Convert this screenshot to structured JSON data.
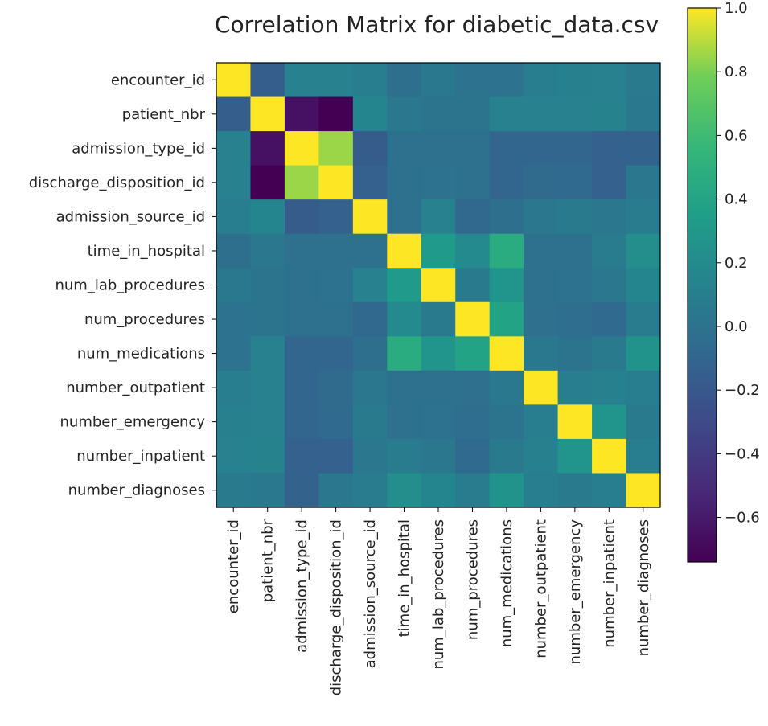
{
  "chart_data": {
    "type": "heatmap",
    "title": "Correlation Matrix for diabetic_data.csv",
    "xlabel": "",
    "ylabel": "",
    "labels": [
      "encounter_id",
      "patient_nbr",
      "admission_type_id",
      "discharge_disposition_id",
      "admission_source_id",
      "time_in_hospital",
      "num_lab_procedures",
      "num_procedures",
      "num_medications",
      "number_outpatient",
      "number_emergency",
      "number_inpatient",
      "number_diagnoses"
    ],
    "matrix": [
      [
        1.0,
        -0.16,
        0.12,
        0.12,
        0.1,
        -0.03,
        0.05,
        0.0,
        0.0,
        0.1,
        0.11,
        0.12,
        0.06
      ],
      [
        -0.16,
        1.0,
        -0.65,
        -0.74,
        0.15,
        0.04,
        0.01,
        0.01,
        0.12,
        0.12,
        0.12,
        0.14,
        0.05
      ],
      [
        0.12,
        -0.65,
        1.0,
        0.85,
        -0.17,
        -0.01,
        -0.01,
        -0.01,
        -0.1,
        -0.1,
        -0.1,
        -0.14,
        -0.12
      ],
      [
        0.12,
        -0.74,
        0.85,
        1.0,
        -0.14,
        -0.01,
        0.0,
        -0.01,
        -0.1,
        -0.06,
        -0.07,
        -0.14,
        0.04
      ],
      [
        0.1,
        0.15,
        -0.17,
        -0.14,
        1.0,
        -0.01,
        0.12,
        -0.09,
        -0.03,
        0.04,
        0.06,
        0.04,
        0.07
      ],
      [
        -0.03,
        0.04,
        -0.01,
        -0.01,
        -0.01,
        1.0,
        0.32,
        0.19,
        0.47,
        -0.01,
        -0.01,
        0.07,
        0.22
      ],
      [
        0.05,
        0.01,
        -0.01,
        0.0,
        0.12,
        0.32,
        1.0,
        0.06,
        0.27,
        -0.01,
        0.0,
        0.04,
        0.15
      ],
      [
        0.0,
        0.01,
        -0.01,
        -0.01,
        -0.09,
        0.19,
        0.06,
        1.0,
        0.39,
        -0.02,
        -0.04,
        -0.07,
        0.07
      ],
      [
        0.0,
        0.12,
        -0.1,
        -0.1,
        -0.03,
        0.47,
        0.27,
        0.39,
        1.0,
        0.05,
        0.01,
        0.06,
        0.26
      ],
      [
        0.1,
        0.12,
        -0.1,
        -0.06,
        0.04,
        -0.01,
        -0.01,
        -0.02,
        0.05,
        1.0,
        0.09,
        0.11,
        0.09
      ],
      [
        0.11,
        0.12,
        -0.1,
        -0.07,
        0.06,
        -0.01,
        0.0,
        -0.04,
        0.01,
        0.09,
        1.0,
        0.27,
        0.06
      ],
      [
        0.12,
        0.14,
        -0.14,
        -0.14,
        0.04,
        0.07,
        0.04,
        -0.07,
        0.06,
        0.11,
        0.27,
        1.0,
        0.1
      ],
      [
        0.06,
        0.05,
        -0.12,
        0.04,
        0.07,
        0.22,
        0.15,
        0.07,
        0.26,
        0.09,
        0.06,
        0.1,
        1.0
      ]
    ],
    "vmin": -0.74,
    "vmax": 1.0,
    "colormap": "viridis",
    "colorbar_ticks": [
      {
        "value": 1.0,
        "label": "1.0"
      },
      {
        "value": 0.8,
        "label": "0.8"
      },
      {
        "value": 0.6,
        "label": "0.6"
      },
      {
        "value": 0.4,
        "label": "0.4"
      },
      {
        "value": 0.2,
        "label": "0.2"
      },
      {
        "value": 0.0,
        "label": "0.0"
      },
      {
        "value": -0.2,
        "label": "−0.2"
      },
      {
        "value": -0.4,
        "label": "−0.4"
      },
      {
        "value": -0.6,
        "label": "−0.6"
      }
    ]
  }
}
